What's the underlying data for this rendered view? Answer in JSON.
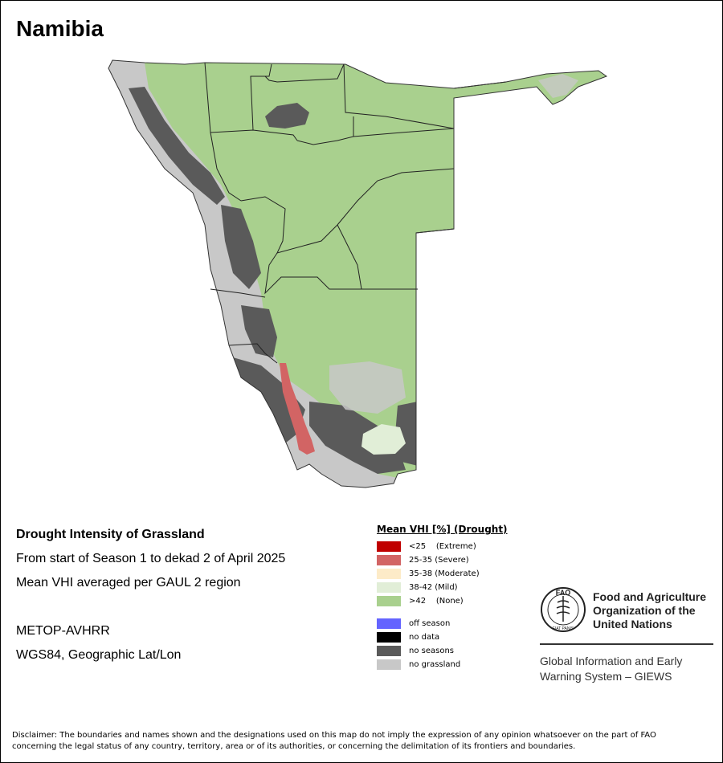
{
  "map": {
    "title": "Namibia",
    "subject": "Drought Intensity of Grassland",
    "period": "From start of Season 1 to dekad 2 of April 2025",
    "method": "Mean VHI averaged per GAUL 2 region",
    "sensor": "METOP-AVHRR",
    "projection": "WGS84, Geographic Lat/Lon"
  },
  "legend": {
    "title": "Mean VHI [%] (Drought)",
    "classes": [
      {
        "label": "<25    (Extreme)",
        "color": "#c00000"
      },
      {
        "label": "25-35 (Severe)",
        "color": "#d26464"
      },
      {
        "label": "35-38 (Moderate)",
        "color": "#fdebc8"
      },
      {
        "label": "38-42 (Mild)",
        "color": "#e1eed7"
      },
      {
        "label": ">42    (None)",
        "color": "#a9d08e"
      }
    ],
    "other": [
      {
        "label": "off season",
        "color": "#6464ff"
      },
      {
        "label": "no data",
        "color": "#000000"
      },
      {
        "label": "no seasons",
        "color": "#5a5a5a"
      },
      {
        "label": "no grassland",
        "color": "#c8c8c8"
      }
    ]
  },
  "organization": {
    "name_line1": "Food and Agriculture",
    "name_line2": "Organization of the",
    "name_line3": "United Nations",
    "logo_text": "FAO",
    "logo_motto": "FIAT PANIS",
    "system_line1": "Global Information and Early",
    "system_line2": "Warning System – GIEWS"
  },
  "disclaimer": {
    "line1": "Disclaimer: The boundaries and names shown and the designations used on this map do not imply the expression of any opinion whatsoever on the part of FAO",
    "line2": "concerning the legal status of any country, territory, area or of its authorities, or concerning the delimitation of its frontiers and boundaries."
  }
}
